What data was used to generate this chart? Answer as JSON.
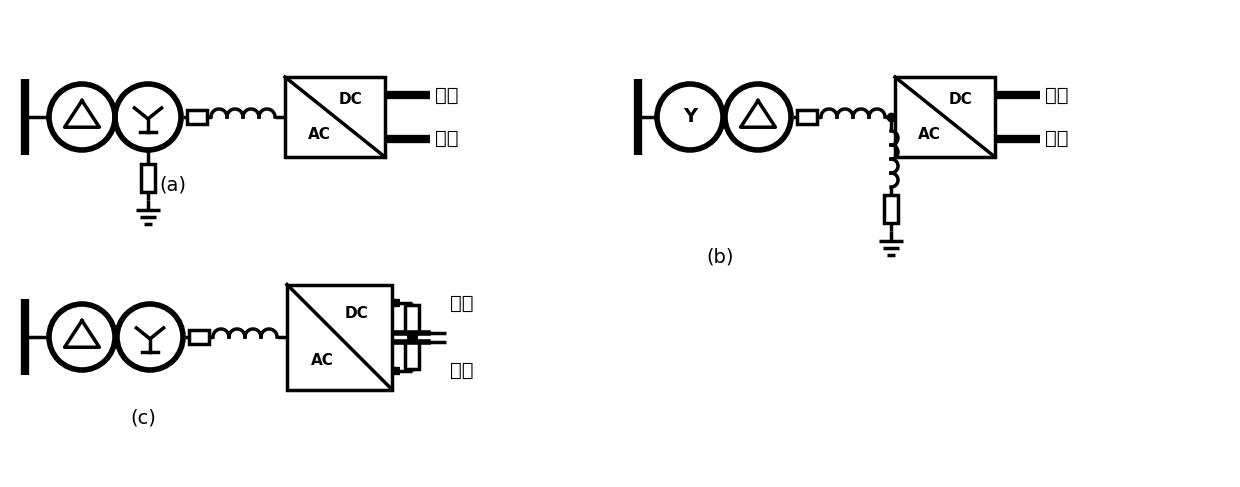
{
  "bg_color": "#ffffff",
  "line_color": "#000000",
  "lw": 2.5,
  "lw_thick": 6.0,
  "label_a": "(a)",
  "label_b": "(b)",
  "label_c": "(c)",
  "text_zhengji": "正极",
  "text_fuji": "负极",
  "text_DC": "DC",
  "text_AC": "AC",
  "text_Y": "Y"
}
